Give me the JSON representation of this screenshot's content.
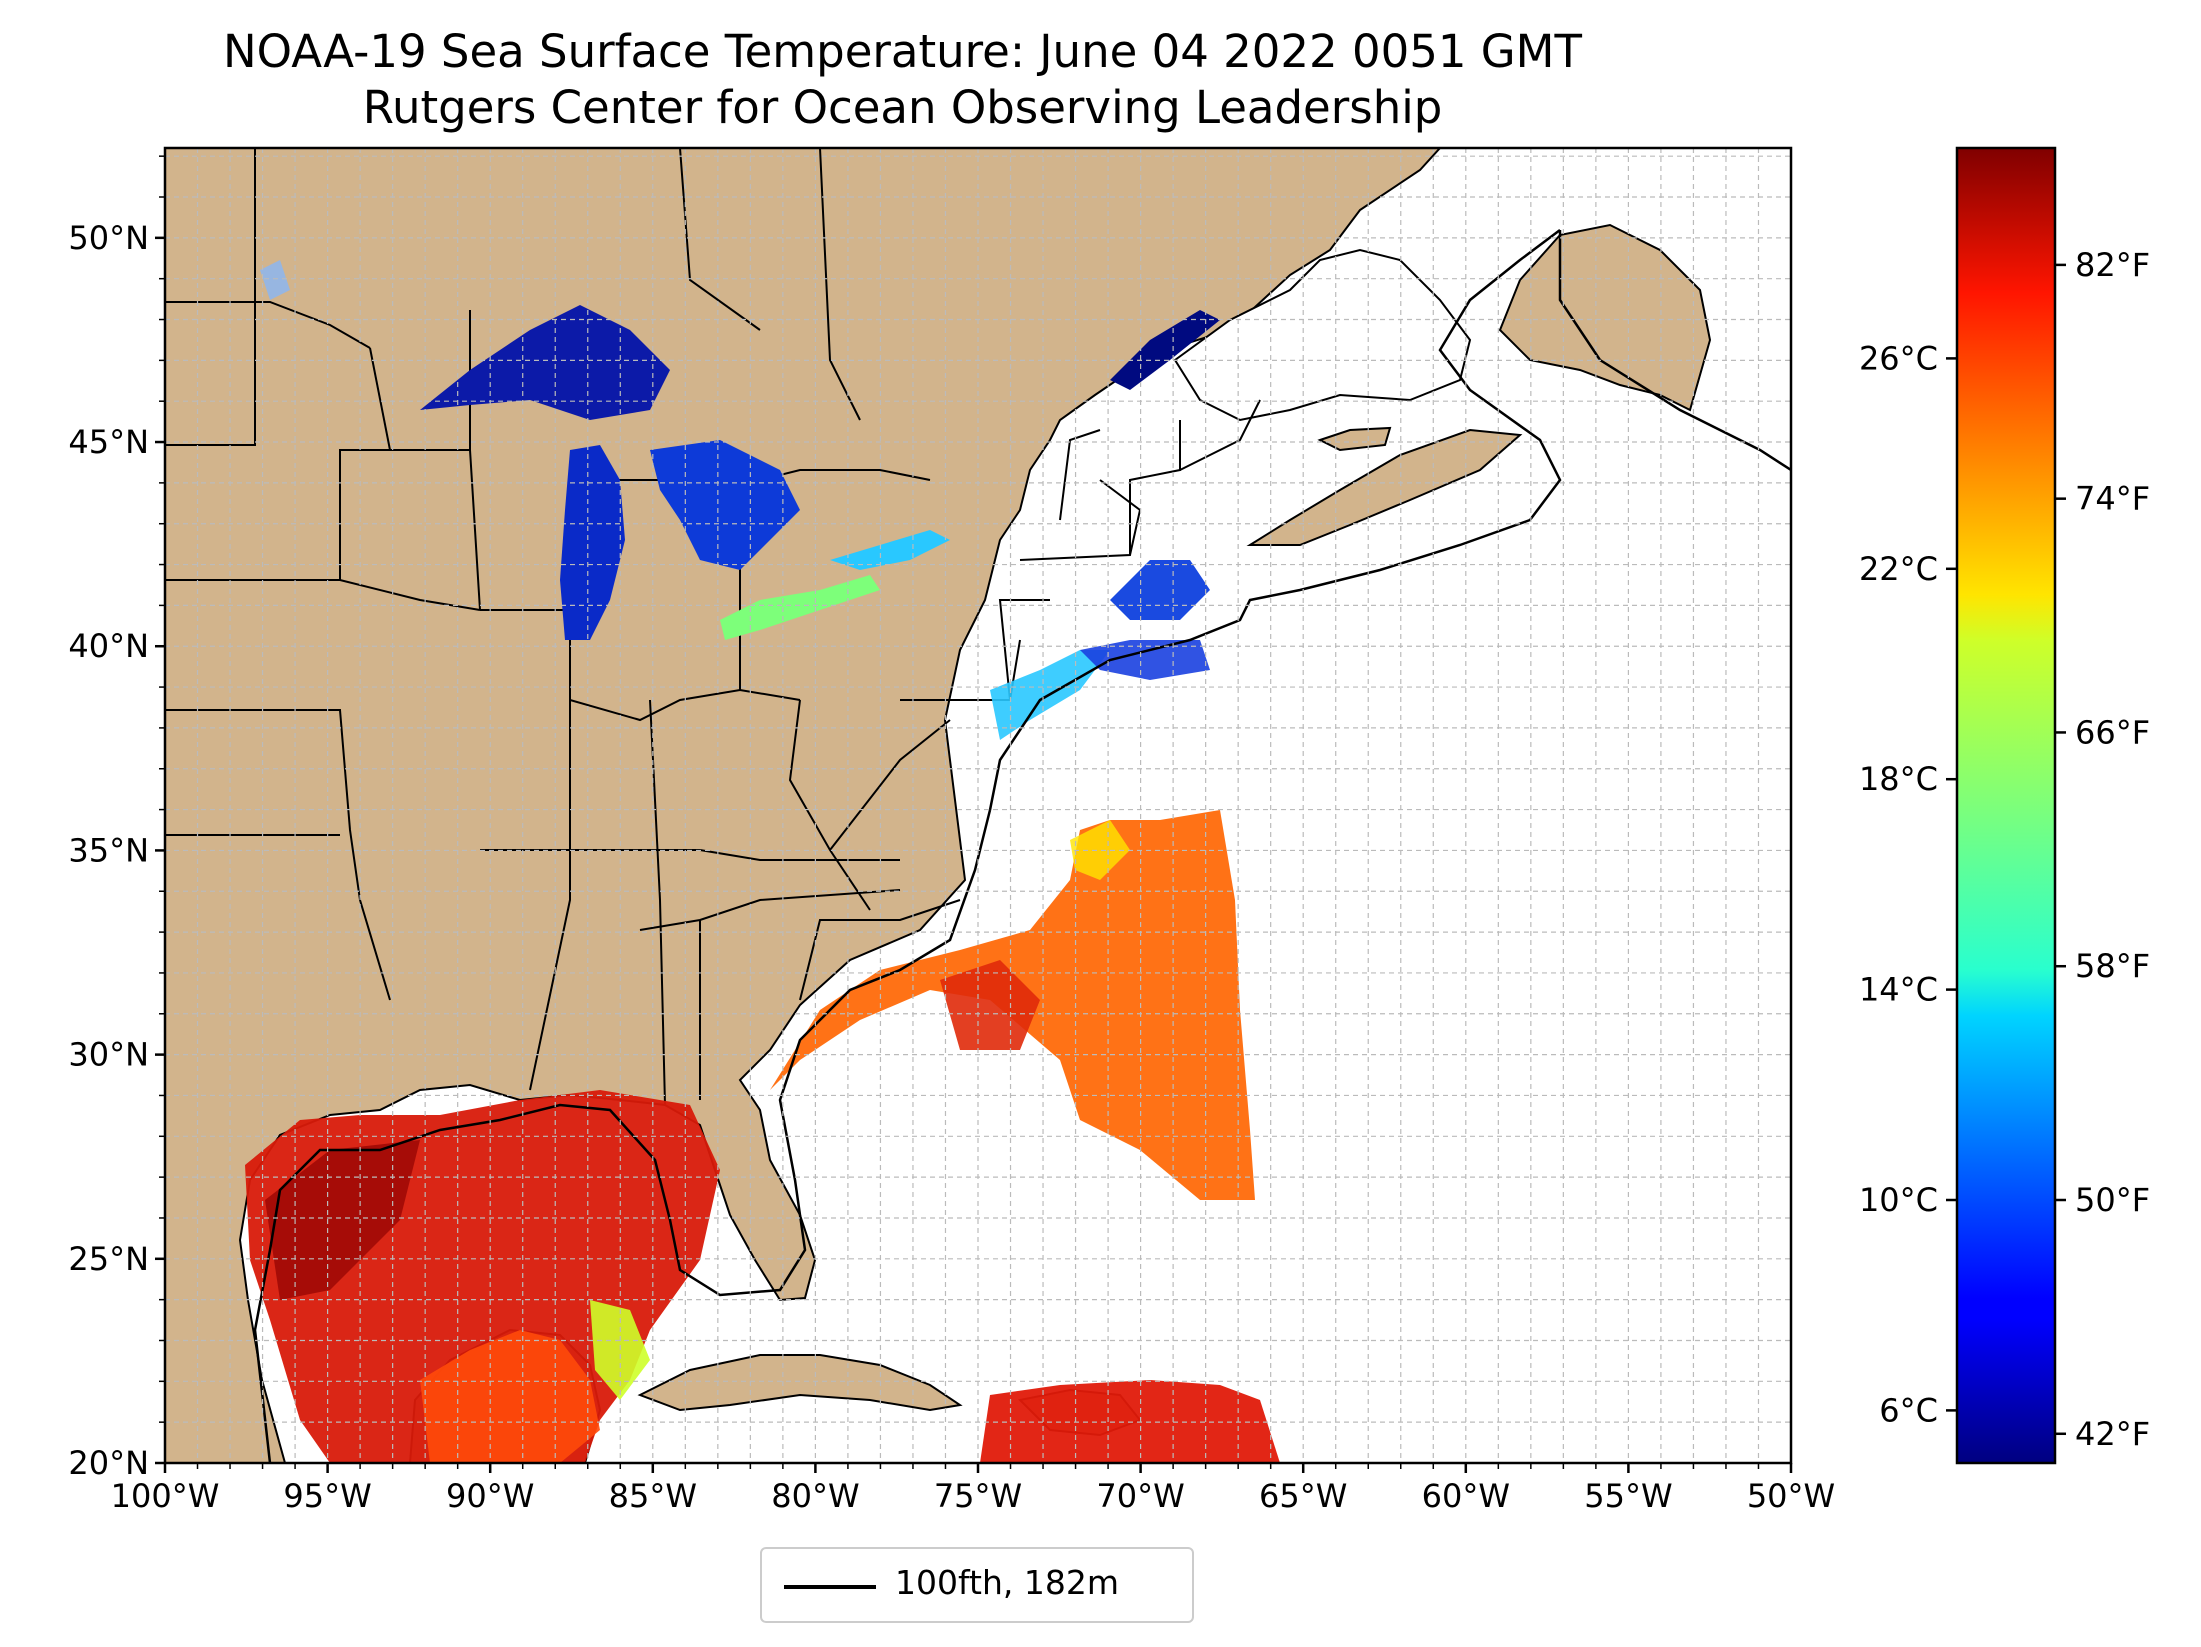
{
  "title": {
    "line1": "NOAA-19 Sea Surface Temperature: June 04 2022 0051 GMT",
    "line2": "Rutgers Center for Ocean Observing Leadership"
  },
  "map": {
    "lon_range": [
      -100,
      -50
    ],
    "lat_range": [
      20,
      52.2
    ],
    "lat_ticks": [
      "20°N",
      "25°N",
      "30°N",
      "35°N",
      "40°N",
      "45°N",
      "50°N"
    ],
    "lat_tick_values": [
      20,
      25,
      30,
      35,
      40,
      45,
      50
    ],
    "lon_ticks": [
      "100°W",
      "95°W",
      "90°W",
      "85°W",
      "80°W",
      "75°W",
      "70°W",
      "65°W",
      "60°W",
      "55°W",
      "50°W"
    ],
    "lon_tick_values": [
      -100,
      -95,
      -90,
      -85,
      -80,
      -75,
      -70,
      -65,
      -60,
      -55,
      -50
    ],
    "gridlines": "dashed every 1 degree",
    "colors": {
      "land": "#d2b48c",
      "lakes": "#97b6e1",
      "ocean_nodata": "#ffffff"
    }
  },
  "legend": {
    "label": "100fth, 182m",
    "placement": "below map"
  },
  "colorbar": {
    "colormap": "jet",
    "celsius_ticks": [
      "6°C",
      "10°C",
      "14°C",
      "18°C",
      "22°C",
      "26°C"
    ],
    "celsius_values": [
      6,
      10,
      14,
      18,
      22,
      26
    ],
    "fahrenheit_ticks": [
      "42°F",
      "50°F",
      "58°F",
      "66°F",
      "74°F",
      "82°F"
    ],
    "fahrenheit_values": [
      42,
      50,
      58,
      66,
      74,
      82
    ],
    "range_celsius": [
      5,
      30
    ]
  }
}
